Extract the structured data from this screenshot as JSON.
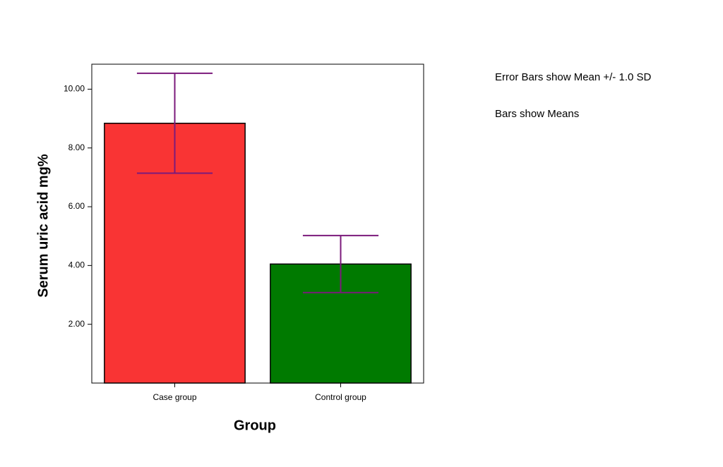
{
  "chart_data": {
    "type": "bar",
    "x_label": "Group",
    "y_label": "Serum uric acid mg%",
    "annotations": [
      "Error Bars show Mean +/- 1.0 SD",
      "Bars show Means"
    ],
    "categories": [
      "Case group",
      "Control group"
    ],
    "values": [
      8.84,
      4.05
    ],
    "errors": [
      1.7,
      0.97
    ],
    "colors": [
      "#f93434",
      "#007a00"
    ],
    "error_color": "#7b1a7b",
    "ylim": [
      0,
      10.85
    ],
    "yticks": [
      {
        "value": 2,
        "label": "2.00"
      },
      {
        "value": 4,
        "label": "4.00"
      },
      {
        "value": 6,
        "label": "6.00"
      },
      {
        "value": 8,
        "label": "8.00"
      },
      {
        "value": 10,
        "label": "10.00"
      }
    ],
    "grid": false
  }
}
